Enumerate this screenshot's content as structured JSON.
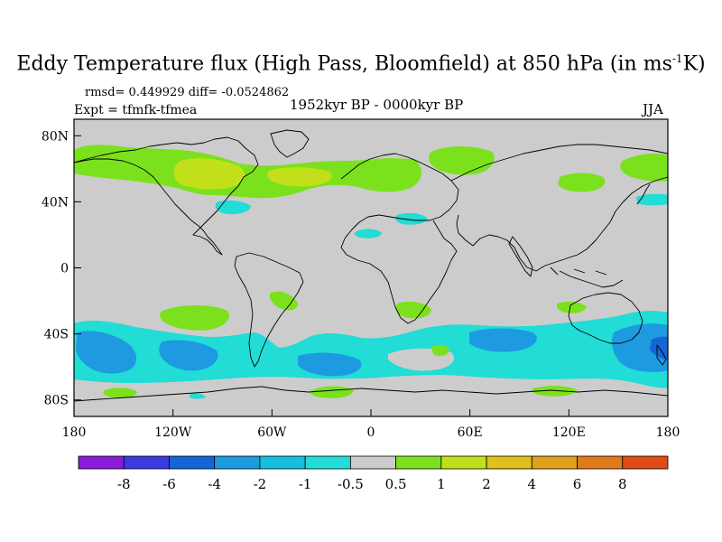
{
  "figure": {
    "title": "Eddy Temperature flux (High Pass, Bloomfield) at 850 hPa (in ms",
    "title_sup": "-1",
    "title_end": "K)",
    "stats": "rmsd= 0.449929 diff= -0.0524862",
    "expt": "Expt = tfmfk-tfmea",
    "period": "1952kyr BP - 0000kyr BP",
    "season": "JJA"
  },
  "map": {
    "projection": "cylindrical equidistant",
    "lon_range": [
      -180,
      180
    ],
    "lat_range": [
      -90,
      90
    ],
    "background_color": "#cccccc",
    "lon_ticks": [
      {
        "value": -180,
        "label": "180"
      },
      {
        "value": -120,
        "label": "120W"
      },
      {
        "value": -60,
        "label": "60W"
      },
      {
        "value": 0,
        "label": "0"
      },
      {
        "value": 60,
        "label": "60E"
      },
      {
        "value": 120,
        "label": "120E"
      },
      {
        "value": 180,
        "label": "180"
      }
    ],
    "lat_ticks": [
      {
        "value": 80,
        "label": "80N"
      },
      {
        "value": 40,
        "label": "40N"
      },
      {
        "value": 0,
        "label": "0"
      },
      {
        "value": -40,
        "label": "40S"
      },
      {
        "value": -80,
        "label": "80S"
      }
    ]
  },
  "colorbar": {
    "colors": [
      "#8a1bd8",
      "#3a3ae0",
      "#1565d6",
      "#1d9ae0",
      "#14c0de",
      "#22dcd6",
      "#cccccc",
      "#7be11c",
      "#c2e01a",
      "#e0c01a",
      "#e0a019",
      "#e07b1a",
      "#e04a14"
    ],
    "labels": [
      "-8",
      "-6",
      "-4",
      "-2",
      "-1",
      "-0.5",
      "0.5",
      "1",
      "2",
      "4",
      "6",
      "8"
    ]
  }
}
